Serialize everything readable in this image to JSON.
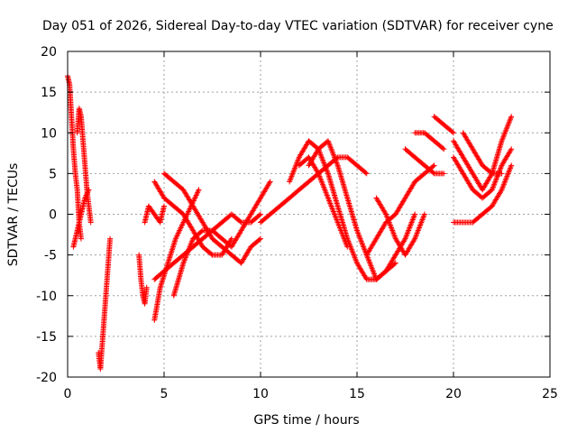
{
  "chart_data": {
    "type": "scatter",
    "title": "Day 051 of 2026, Sidereal Day-to-day VTEC variation (SDTVAR) for receiver cyne",
    "xlabel": "GPS time / hours",
    "ylabel": "SDTVAR / TECUs",
    "xlim": [
      0,
      25
    ],
    "ylim": [
      -20,
      20
    ],
    "x_ticks": [
      "0",
      "5",
      "10",
      "15",
      "20",
      "25"
    ],
    "y_ticks": [
      "-20",
      "-15",
      "-10",
      "-5",
      "0",
      "5",
      "10",
      "15",
      "20"
    ],
    "grid": true,
    "marker": "+",
    "color": "#ff0000",
    "series": [
      {
        "name": "s1",
        "x": [
          0.0,
          0.1,
          0.2,
          0.3,
          0.4,
          0.5,
          0.6,
          0.7
        ],
        "y": [
          17,
          16,
          12,
          8,
          5,
          3,
          -1,
          -3
        ]
      },
      {
        "name": "s2",
        "x": [
          0.5,
          0.6,
          0.7,
          0.8,
          0.9,
          1.0,
          1.1,
          1.2
        ],
        "y": [
          10,
          13,
          12,
          9,
          6,
          3,
          1,
          -1
        ]
      },
      {
        "name": "s3",
        "x": [
          0.3,
          0.5,
          0.7,
          0.9,
          1.1
        ],
        "y": [
          -4,
          -2,
          0,
          2,
          3
        ]
      },
      {
        "name": "s4",
        "x": [
          1.6,
          1.7,
          2.2
        ],
        "y": [
          -17,
          -19,
          -3
        ]
      },
      {
        "name": "s5",
        "x": [
          3.7,
          3.8,
          3.9,
          4.0,
          4.1
        ],
        "y": [
          -5,
          -8,
          -10,
          -11,
          -9
        ]
      },
      {
        "name": "s6",
        "x": [
          4.0,
          4.2,
          4.5,
          4.8,
          5.0
        ],
        "y": [
          -1,
          1,
          0,
          -1,
          1
        ]
      },
      {
        "name": "s7",
        "x": [
          4.5,
          5.0,
          5.5,
          6.0,
          6.5,
          7.0,
          7.5,
          8.0,
          8.5
        ],
        "y": [
          4,
          2,
          1,
          0,
          -2,
          -4,
          -5,
          -5,
          -3
        ]
      },
      {
        "name": "s8",
        "x": [
          5.0,
          5.5,
          6.0,
          6.5,
          7.0,
          7.5,
          8.0,
          8.5,
          9.0,
          9.5,
          10.0
        ],
        "y": [
          5,
          4,
          3,
          1,
          -1,
          -3,
          -4,
          -5,
          -6,
          -4,
          -3
        ]
      },
      {
        "name": "s9",
        "x": [
          4.5,
          4.8,
          5.2,
          5.6,
          6.0,
          6.4,
          6.8
        ],
        "y": [
          -13,
          -9,
          -6,
          -3,
          -1,
          1,
          3
        ]
      },
      {
        "name": "s10",
        "x": [
          5.5,
          6.0,
          6.5,
          7.0,
          7.5,
          8.0,
          8.5,
          9.0,
          9.5,
          10.0,
          10.5
        ],
        "y": [
          -10,
          -6,
          -3,
          -2,
          -2,
          -3,
          -4,
          -2,
          0,
          2,
          4
        ]
      },
      {
        "name": "s11",
        "x": [
          4.5,
          5.0,
          5.5,
          6.0,
          6.5,
          7.0,
          7.5,
          8.0,
          8.5,
          9.0,
          9.5,
          10.0
        ],
        "y": [
          -8,
          -7,
          -6,
          -5,
          -4,
          -3,
          -2,
          -1,
          0,
          -1,
          -1,
          0
        ]
      },
      {
        "name": "s12",
        "x": [
          10.0,
          10.5,
          11.0,
          11.5,
          12.0,
          12.5,
          13.0,
          13.5,
          14.0,
          14.5,
          15.0,
          15.5
        ],
        "y": [
          -1,
          0,
          1,
          2,
          3,
          4,
          5,
          6,
          7,
          7,
          6,
          5
        ]
      },
      {
        "name": "s13",
        "x": [
          11.5,
          12.0,
          12.5,
          13.0,
          13.5,
          14.0,
          14.5,
          15.0,
          15.5,
          16.0,
          16.5,
          17.0
        ],
        "y": [
          4,
          7,
          9,
          8,
          5,
          1,
          -3,
          -6,
          -8,
          -8,
          -7,
          -6
        ]
      },
      {
        "name": "s14",
        "x": [
          12.5,
          13.0,
          13.5,
          14.0,
          14.5,
          15.0,
          15.5,
          16.0,
          16.5,
          17.0,
          17.5,
          18.0
        ],
        "y": [
          6,
          8,
          9,
          6,
          2,
          -2,
          -5,
          -8,
          -7,
          -5,
          -3,
          0
        ]
      },
      {
        "name": "s15",
        "x": [
          12.0,
          12.5,
          13.0,
          13.5,
          14.0,
          14.5
        ],
        "y": [
          6,
          7,
          5,
          2,
          -1,
          -4
        ]
      },
      {
        "name": "s16",
        "x": [
          15.5,
          16.0,
          16.5,
          17.0,
          17.5,
          18.0,
          18.5,
          19.0
        ],
        "y": [
          -5,
          -3,
          -1,
          0,
          2,
          4,
          5,
          6
        ]
      },
      {
        "name": "s17",
        "x": [
          16.0,
          16.5,
          17.0,
          17.5,
          18.0,
          18.5
        ],
        "y": [
          2,
          0,
          -3,
          -5,
          -3,
          0
        ]
      },
      {
        "name": "s18",
        "x": [
          17.5,
          18.0,
          18.5,
          19.0,
          19.5
        ],
        "y": [
          8,
          7,
          6,
          5,
          5
        ]
      },
      {
        "name": "s19",
        "x": [
          18.0,
          18.5,
          19.0,
          19.5
        ],
        "y": [
          10,
          10,
          9,
          8
        ]
      },
      {
        "name": "s20",
        "x": [
          19.0,
          19.5,
          20.0
        ],
        "y": [
          12,
          11,
          10
        ]
      },
      {
        "name": "s21",
        "x": [
          20.0,
          20.5,
          21.0,
          21.5,
          22.0,
          22.5,
          23.0
        ],
        "y": [
          -1,
          -1,
          -1,
          0,
          1,
          3,
          6
        ]
      },
      {
        "name": "s22",
        "x": [
          20.0,
          20.5,
          21.0,
          21.5,
          22.0,
          22.5,
          23.0
        ],
        "y": [
          9,
          7,
          5,
          3,
          5,
          9,
          12
        ]
      },
      {
        "name": "s23",
        "x": [
          20.0,
          20.5,
          21.0,
          21.5,
          22.0,
          22.5,
          23.0
        ],
        "y": [
          7,
          5,
          3,
          2,
          3,
          6,
          8
        ]
      },
      {
        "name": "s24",
        "x": [
          20.5,
          21.0,
          21.5,
          22.0,
          22.5
        ],
        "y": [
          10,
          8,
          6,
          5,
          5
        ]
      }
    ]
  }
}
